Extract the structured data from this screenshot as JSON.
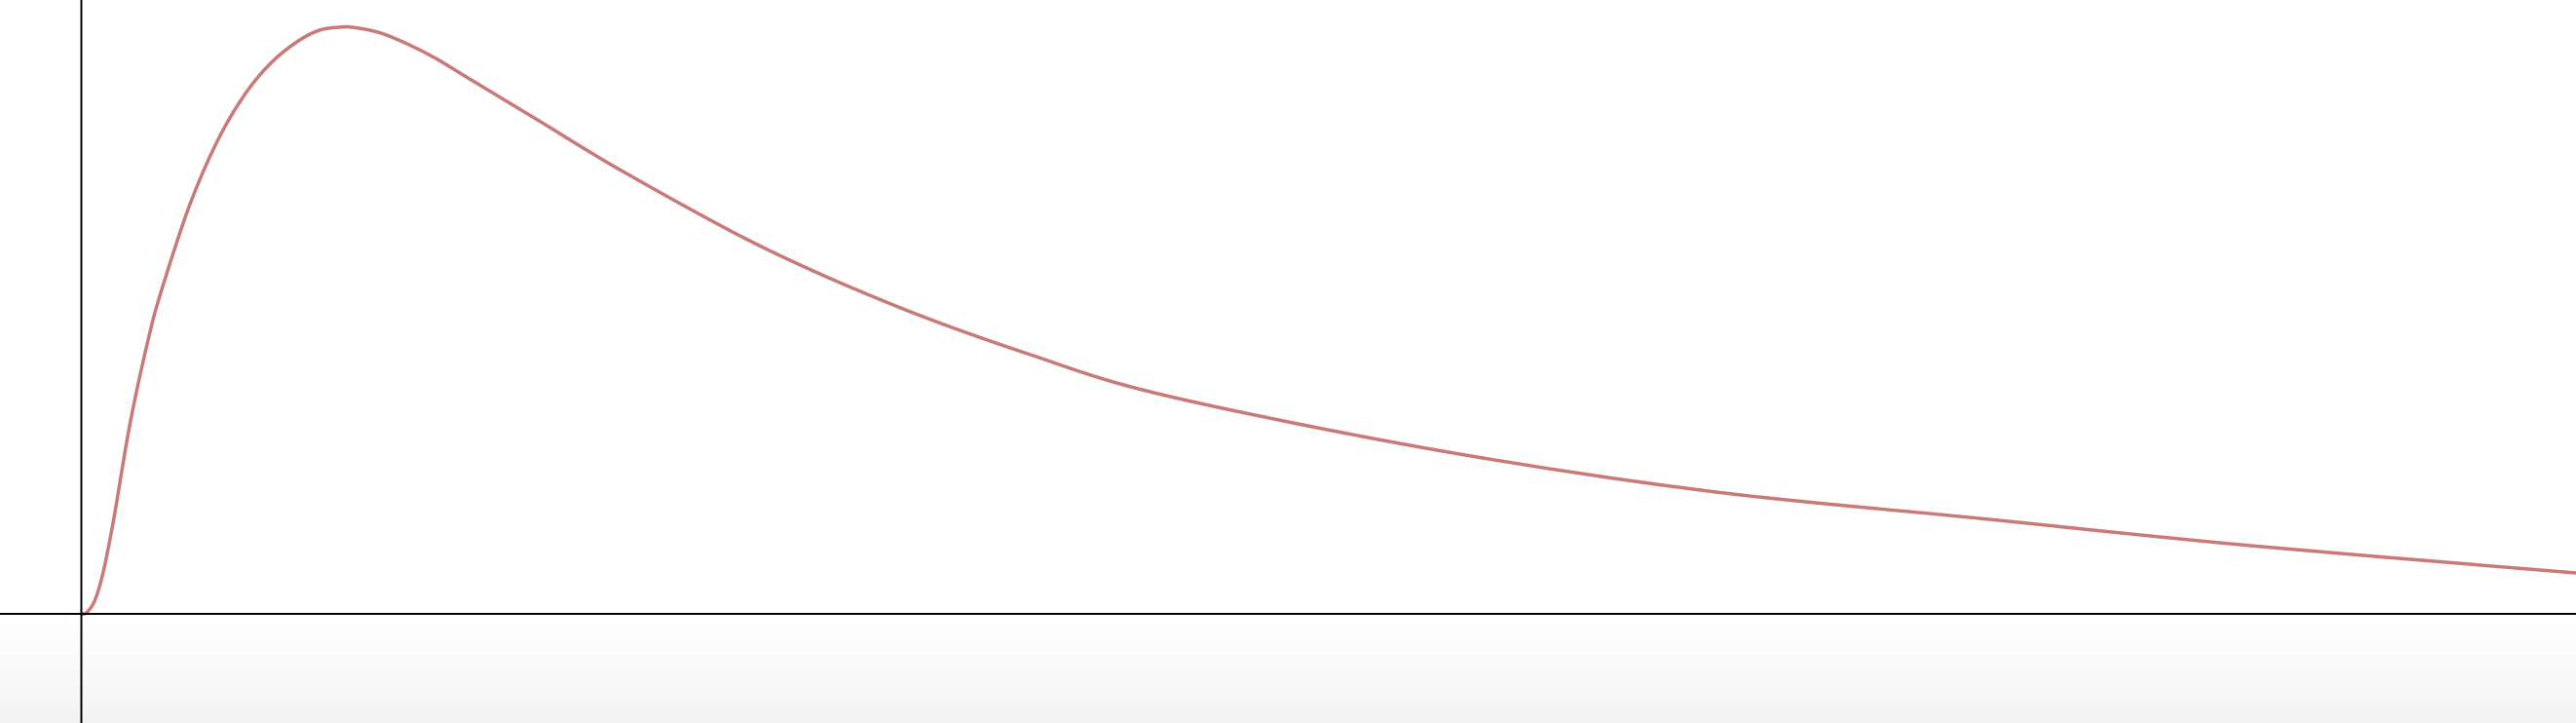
{
  "chart_data": {
    "type": "line",
    "title": "",
    "xlabel": "",
    "ylabel": "",
    "grid": false,
    "xlim": [
      -0.3,
      9.2
    ],
    "ylim": [
      -0.4,
      2.25
    ],
    "series": [
      {
        "color": "#c97a78",
        "x": [
          0,
          0.02,
          0.05,
          0.08,
          0.12,
          0.18,
          0.25,
          0.3,
          0.4,
          0.5,
          0.6,
          0.7,
          0.8,
          0.88,
          0.95,
          1.0,
          1.1,
          1.2,
          1.3,
          1.4,
          1.5,
          1.7,
          2.0,
          2.5,
          3.0,
          3.5,
          4.0,
          5.0,
          6.0,
          7.0,
          8.0,
          9.2
        ],
        "y": [
          0,
          0.005,
          0.05,
          0.15,
          0.35,
          0.7,
          1.02,
          1.2,
          1.5,
          1.73,
          1.9,
          2.02,
          2.1,
          2.14,
          2.15,
          2.15,
          2.13,
          2.09,
          2.04,
          1.98,
          1.92,
          1.8,
          1.62,
          1.35,
          1.13,
          0.95,
          0.8,
          0.6,
          0.45,
          0.35,
          0.25,
          0.15
        ]
      }
    ],
    "axis_color": "#000000",
    "background": "#ffffff"
  }
}
